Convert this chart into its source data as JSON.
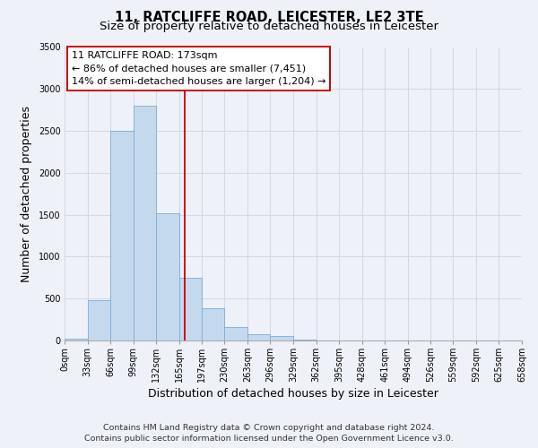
{
  "title_line1": "11, RATCLIFFE ROAD, LEICESTER, LE2 3TE",
  "title_line2": "Size of property relative to detached houses in Leicester",
  "xlabel": "Distribution of detached houses by size in Leicester",
  "ylabel": "Number of detached properties",
  "bin_edges": [
    0,
    33,
    66,
    99,
    132,
    165,
    197,
    230,
    263,
    296,
    329,
    362,
    395,
    428,
    461,
    494,
    526,
    559,
    592,
    625,
    658
  ],
  "bin_labels": [
    "0sqm",
    "33sqm",
    "66sqm",
    "99sqm",
    "132sqm",
    "165sqm",
    "197sqm",
    "230sqm",
    "263sqm",
    "296sqm",
    "329sqm",
    "362sqm",
    "395sqm",
    "428sqm",
    "461sqm",
    "494sqm",
    "526sqm",
    "559sqm",
    "592sqm",
    "625sqm",
    "658sqm"
  ],
  "counts": [
    20,
    480,
    2500,
    2800,
    1520,
    750,
    390,
    155,
    80,
    50,
    10,
    5,
    2,
    0,
    0,
    0,
    0,
    0,
    0,
    0
  ],
  "bar_color": "#c5d9ee",
  "bar_edge_color": "#7aadd4",
  "property_line_x": 173,
  "property_line_color": "#cc0000",
  "annotation_line1": "11 RATCLIFFE ROAD: 173sqm",
  "annotation_line2": "← 86% of detached houses are smaller (7,451)",
  "annotation_line3": "14% of semi-detached houses are larger (1,204) →",
  "ylim": [
    0,
    3500
  ],
  "yticks": [
    0,
    500,
    1000,
    1500,
    2000,
    2500,
    3000,
    3500
  ],
  "footer_line1": "Contains HM Land Registry data © Crown copyright and database right 2024.",
  "footer_line2": "Contains public sector information licensed under the Open Government Licence v3.0.",
  "bg_color": "#eef2f8",
  "plot_bg_color": "#eef2f8",
  "grid_color": "#d0daea",
  "title_fontsize": 10.5,
  "subtitle_fontsize": 9.5,
  "axis_label_fontsize": 9,
  "tick_fontsize": 7,
  "footer_fontsize": 6.8,
  "annotation_fontsize": 8
}
